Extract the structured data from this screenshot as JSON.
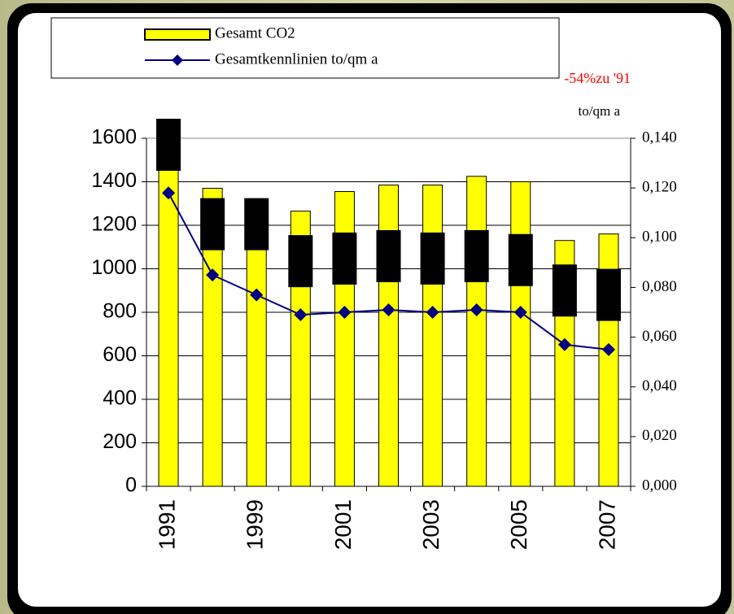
{
  "chart_data": {
    "type": "bar",
    "categories": [
      "1991",
      null,
      "1999",
      null,
      "2001",
      null,
      "2003",
      null,
      "2005",
      null,
      "2007"
    ],
    "series": [
      {
        "name": "Gesamt CO2",
        "type": "bar",
        "color": "#ffff00",
        "values": [
          1650,
          1370,
          1250,
          1265,
          1355,
          1385,
          1385,
          1425,
          1400,
          1130,
          1160
        ]
      },
      {
        "name": "Gesamtkennlinien to/qm a",
        "type": "line",
        "axis": "y2",
        "color": "#000080",
        "values": [
          0.118,
          0.085,
          0.077,
          0.069,
          0.07,
          0.071,
          0.07,
          0.071,
          0.07,
          0.057,
          0.055
        ]
      },
      {
        "type": "block",
        "color": "#000000",
        "values": [
          1570,
          1205,
          1205,
          1035,
          1047,
          1058,
          1047,
          1058,
          1040,
          900,
          880
        ]
      }
    ],
    "ylim": [
      0,
      1600
    ],
    "yticks": [
      0,
      200,
      400,
      600,
      800,
      1000,
      1200,
      1400,
      1600
    ],
    "y2lim": [
      0,
      0.14
    ],
    "y2ticks": [
      {
        "value": 0,
        "label": "0,000"
      },
      {
        "value": 0.02,
        "label": "0,020"
      },
      {
        "value": 0.04,
        "label": "0,040"
      },
      {
        "value": 0.06,
        "label": "0,060"
      },
      {
        "value": 0.08,
        "label": "0,080"
      },
      {
        "value": 0.1,
        "label": "0,100"
      },
      {
        "value": 0.12,
        "label": "0,120"
      },
      {
        "value": 0.14,
        "label": "0,140"
      }
    ],
    "y2label": "to/qm a",
    "annotation": "-54%zu '91",
    "grid": true,
    "legend": "top"
  }
}
